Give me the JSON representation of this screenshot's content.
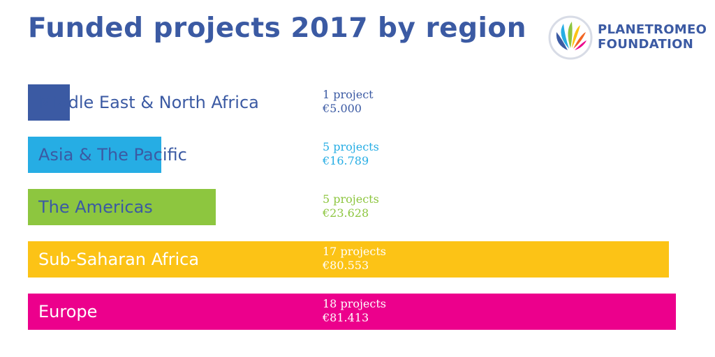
{
  "title": "Funded projects 2017 by region",
  "logo": {
    "line1": "PLANETROMEO",
    "line2": "FOUNDATION",
    "icon": "rainbow-fan-logo-icon"
  },
  "colors": {
    "title": "#3b5aa3",
    "label_on_bar": "#ffffff",
    "label_off_bar": "#3b5aa3"
  },
  "chart_data": {
    "type": "bar",
    "orientation": "horizontal",
    "title": "Funded projects 2017 by region",
    "categories": [
      "Middle East & North Africa",
      "Asia & The Pacific",
      "The Americas",
      "Sub-Saharan Africa",
      "Europe"
    ],
    "series": [
      {
        "values": [
          1,
          5,
          5,
          17,
          18
        ]
      },
      {
        "values": [
          5000,
          16789,
          23628,
          80553,
          81413
        ]
      }
    ],
    "project_labels": [
      "1 project",
      "5 projects",
      "5 projects",
      "17 projects",
      "18 projects"
    ],
    "amount_labels": [
      "€5.000",
      "€16.789",
      "€23.628",
      "€80.553",
      "€81.413"
    ],
    "bar_colors": [
      "#3b5aa3",
      "#26ade4",
      "#8dc63f",
      "#fcc316",
      "#ec008c"
    ],
    "grid": false,
    "legend": "none"
  }
}
